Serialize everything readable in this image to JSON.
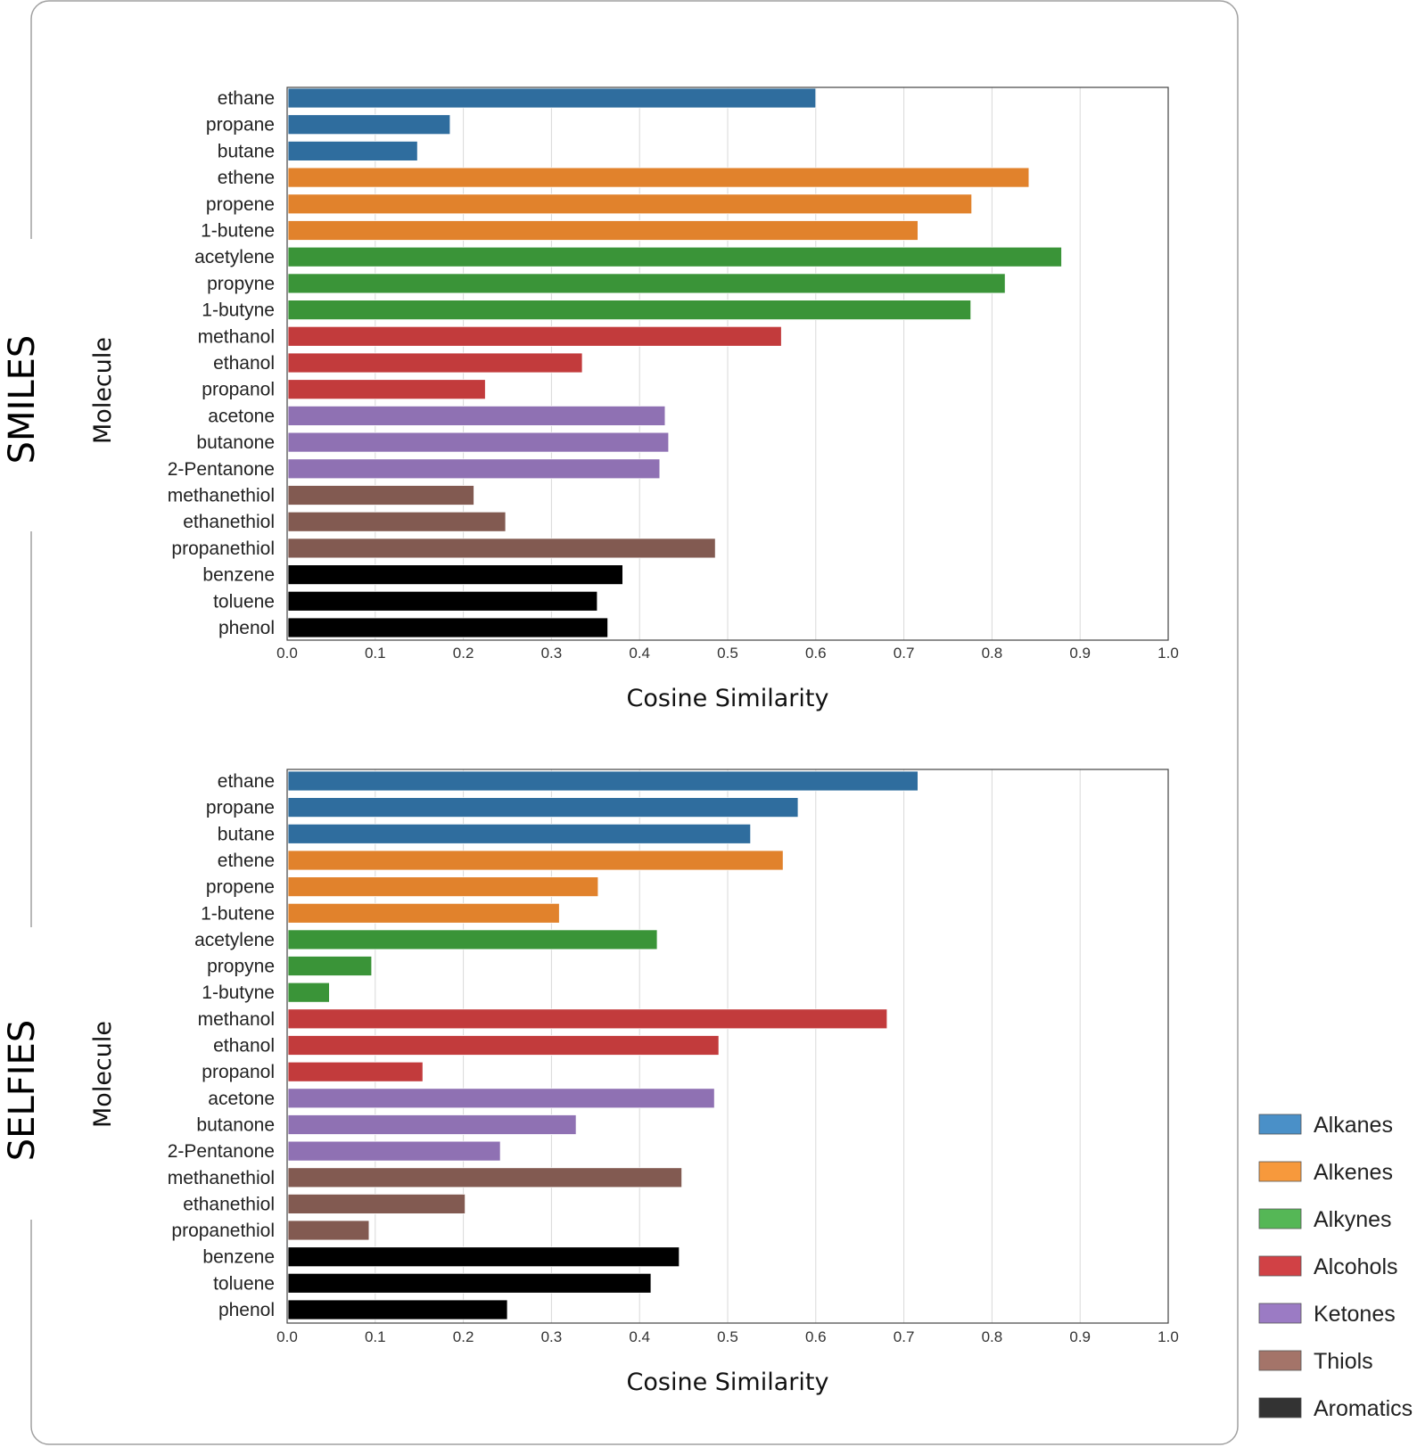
{
  "chart_data": [
    {
      "type": "bar",
      "orientation": "horizontal",
      "panel_label": "SMILES",
      "xlabel": "Cosine Similarity",
      "ylabel": "Molecule",
      "xlim": [
        0.0,
        1.0
      ],
      "xticks": [
        "0.0",
        "0.1",
        "0.2",
        "0.3",
        "0.4",
        "0.5",
        "0.6",
        "0.7",
        "0.8",
        "0.9",
        "1.0"
      ],
      "grid": "vertical",
      "categories": [
        "ethane",
        "propane",
        "butane",
        "ethene",
        "propene",
        "1-butene",
        "acetylene",
        "propyne",
        "1-butyne",
        "methanol",
        "ethanol",
        "propanol",
        "acetone",
        "butanone",
        "2-Pentanone",
        "methanethiol",
        "ethanethiol",
        "propanethiol",
        "benzene",
        "toluene",
        "phenol"
      ],
      "groups": [
        "Alkanes",
        "Alkanes",
        "Alkanes",
        "Alkenes",
        "Alkenes",
        "Alkenes",
        "Alkynes",
        "Alkynes",
        "Alkynes",
        "Alcohols",
        "Alcohols",
        "Alcohols",
        "Ketones",
        "Ketones",
        "Ketones",
        "Thiols",
        "Thiols",
        "Thiols",
        "Aromatics",
        "Aromatics",
        "Aromatics"
      ],
      "values": [
        0.6,
        0.185,
        0.148,
        0.842,
        0.777,
        0.716,
        0.879,
        0.815,
        0.776,
        0.561,
        0.335,
        0.225,
        0.429,
        0.433,
        0.423,
        0.212,
        0.248,
        0.486,
        0.381,
        0.352,
        0.364
      ]
    },
    {
      "type": "bar",
      "orientation": "horizontal",
      "panel_label": "SELFIES",
      "xlabel": "Cosine Similarity",
      "ylabel": "Molecule",
      "xlim": [
        0.0,
        1.0
      ],
      "xticks": [
        "0.0",
        "0.1",
        "0.2",
        "0.3",
        "0.4",
        "0.5",
        "0.6",
        "0.7",
        "0.8",
        "0.9",
        "1.0"
      ],
      "grid": "vertical",
      "categories": [
        "ethane",
        "propane",
        "butane",
        "ethene",
        "propene",
        "1-butene",
        "acetylene",
        "propyne",
        "1-butyne",
        "methanol",
        "ethanol",
        "propanol",
        "acetone",
        "butanone",
        "2-Pentanone",
        "methanethiol",
        "ethanethiol",
        "propanethiol",
        "benzene",
        "toluene",
        "phenol"
      ],
      "groups": [
        "Alkanes",
        "Alkanes",
        "Alkanes",
        "Alkenes",
        "Alkenes",
        "Alkenes",
        "Alkynes",
        "Alkynes",
        "Alkynes",
        "Alcohols",
        "Alcohols",
        "Alcohols",
        "Ketones",
        "Ketones",
        "Ketones",
        "Thiols",
        "Thiols",
        "Thiols",
        "Aromatics",
        "Aromatics",
        "Aromatics"
      ],
      "values": [
        0.716,
        0.58,
        0.526,
        0.563,
        0.353,
        0.309,
        0.42,
        0.096,
        0.048,
        0.681,
        0.49,
        0.154,
        0.485,
        0.328,
        0.242,
        0.448,
        0.202,
        0.093,
        0.445,
        0.413,
        0.25
      ]
    }
  ],
  "group_colors": {
    "Alkanes": "#2f6d9e",
    "Alkenes": "#e1822c",
    "Alkynes": "#3a9438",
    "Alcohols": "#c23b3c",
    "Ketones": "#8f71b3",
    "Thiols": "#825a51",
    "Aromatics": "#000000"
  },
  "legend": {
    "placement": "bottom-right, outside frame",
    "entries": [
      {
        "label": "Alkanes",
        "color": "#4a90c8"
      },
      {
        "label": "Alkenes",
        "color": "#f7993c"
      },
      {
        "label": "Alkynes",
        "color": "#55b756"
      },
      {
        "label": "Alcohols",
        "color": "#d14145"
      },
      {
        "label": "Ketones",
        "color": "#9b7bc4"
      },
      {
        "label": "Thiols",
        "color": "#a47469"
      },
      {
        "label": "Aromatics",
        "color": "#333333"
      }
    ]
  }
}
